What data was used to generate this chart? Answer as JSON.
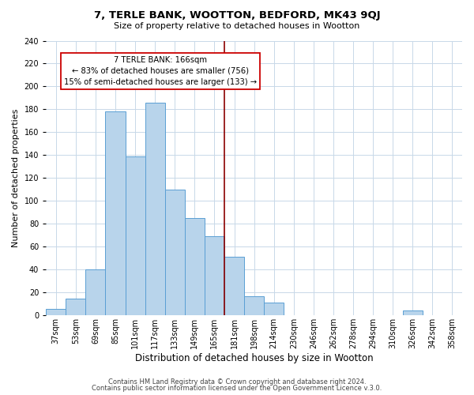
{
  "title": "7, TERLE BANK, WOOTTON, BEDFORD, MK43 9QJ",
  "subtitle": "Size of property relative to detached houses in Wootton",
  "xlabel": "Distribution of detached houses by size in Wootton",
  "ylabel": "Number of detached properties",
  "bar_labels": [
    "37sqm",
    "53sqm",
    "69sqm",
    "85sqm",
    "101sqm",
    "117sqm",
    "133sqm",
    "149sqm",
    "165sqm",
    "181sqm",
    "198sqm",
    "214sqm",
    "230sqm",
    "246sqm",
    "262sqm",
    "278sqm",
    "294sqm",
    "310sqm",
    "326sqm",
    "342sqm",
    "358sqm"
  ],
  "bar_values": [
    6,
    15,
    40,
    178,
    139,
    186,
    110,
    85,
    69,
    51,
    17,
    11,
    0,
    0,
    0,
    0,
    0,
    0,
    4,
    0,
    0
  ],
  "bar_color": "#b8d4eb",
  "bar_edge_color": "#5a9fd4",
  "vline_x": 8.5,
  "vline_color": "#8b0000",
  "annotation_title": "7 TERLE BANK: 166sqm",
  "annotation_line1": "← 83% of detached houses are smaller (756)",
  "annotation_line2": "15% of semi-detached houses are larger (133) →",
  "annotation_box_color": "#ffffff",
  "annotation_box_edge": "#cc0000",
  "ylim": [
    0,
    240
  ],
  "yticks": [
    0,
    20,
    40,
    60,
    80,
    100,
    120,
    140,
    160,
    180,
    200,
    220,
    240
  ],
  "footer1": "Contains HM Land Registry data © Crown copyright and database right 2024.",
  "footer2": "Contains public sector information licensed under the Open Government Licence v.3.0.",
  "bg_color": "#ffffff",
  "grid_color": "#c8d8e8",
  "title_fontsize": 9.5,
  "subtitle_fontsize": 8,
  "xlabel_fontsize": 8.5,
  "ylabel_fontsize": 8,
  "tick_fontsize": 7,
  "footer_fontsize": 6
}
